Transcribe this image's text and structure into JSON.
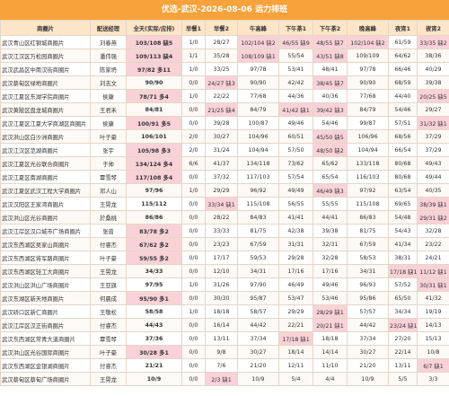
{
  "header": {
    "title": "优选-武汉-2026-08-06 运力排班"
  },
  "table": {
    "columns": [
      "商圈片",
      "配送经理",
      "全天(实际/应排)",
      "早餐1",
      "早餐2",
      "午高峰",
      "下午茶1",
      "下午茶2",
      "晚高峰",
      "夜宵1",
      "夜宵2"
    ],
    "rows": [
      [
        "武汉青山区红钢城商圈片",
        "刘春燕",
        "103/108 缺5",
        "1/0",
        "28/27",
        "102/104 缺2",
        "46/55 缺9",
        "48/55 缺7",
        "102/104 缺2",
        "61/59",
        "33/35 缺2"
      ],
      [
        "武汉江汉区万松园商圈片",
        "潘伟强",
        "109/113 缺4",
        "1/1",
        "35/28",
        "108/109 缺1",
        "55/54",
        "43/51 缺8",
        "109/109",
        "64/62",
        "38/36"
      ],
      [
        "武汉武昌区中南汉街商圈片",
        "陈家坍",
        "97/82 多11",
        "1/0",
        "33/25",
        "97/78",
        "53/41",
        "48/41",
        "97/78",
        "66/46",
        "40/29"
      ],
      [
        "武汉蔡甸区绿地商圈片",
        "刘志文",
        "90/90",
        "0/0",
        "24/27 缺3",
        "90/90",
        "42/42",
        "38/45 缺7",
        "90/90",
        "68/59",
        "39/38"
      ],
      [
        "武汉江夏区东湖学院商圈片",
        "侯康",
        "78/71 多4",
        "1/0",
        "22/22",
        "77/68",
        "44/36",
        "40/36",
        "77/68",
        "44/40",
        "20/25 缺5"
      ],
      [
        "武汉黄陂区盘龙城商圈片",
        "王君禾",
        "84/81",
        "0/0",
        "21/25 缺4",
        "84/79",
        "41/42 缺1",
        "39/42 缺3",
        "84/79",
        "54/46",
        "29/27"
      ],
      [
        "武汉江夏区江夏大学商湖区商圈片",
        "侯康",
        "100/91 多5",
        "0/0",
        "39/28",
        "100/87",
        "49/46",
        "54/46",
        "99/87",
        "57/51",
        "31/32 缺1"
      ],
      [
        "武汉洪山区白沙洲商圈片",
        "叶子豪",
        "106/101",
        "2/0",
        "30/27",
        "104/96",
        "60/51",
        "45/50 缺5",
        "106/96",
        "68/56",
        "37/29"
      ],
      [
        "武汉江汉区范湖商圈片",
        "张宇",
        "105/98 多3",
        "2/0",
        "31/24",
        "104/94",
        "57/50",
        "48/50 缺2",
        "104/94",
        "66/54",
        "37/29"
      ],
      [
        "武汉江夏区光谷联合商圈片",
        "于帅",
        "134/124 多4",
        "6/6",
        "41/37",
        "134/118",
        "73/62",
        "65/62",
        "133/118",
        "80/68",
        "49/43"
      ],
      [
        "武汉江夏区南湖商圈片",
        "覃雪琴",
        "117/108 多4",
        "0/0",
        "37/32",
        "117/103",
        "57/54",
        "65/54",
        "116/103",
        "80/68",
        "49/44"
      ],
      [
        "武汉江夏区武汉工程大学商圈片",
        "邓人山",
        "97/96",
        "1/0",
        "29/29",
        "96/92",
        "49/49",
        "46/49 缺3",
        "97/92",
        "63/54",
        "40/35"
      ],
      [
        "武汉汉阳区王家湾商圈片",
        "王晃龙",
        "115/112",
        "0/0",
        "33/34 缺1",
        "115/108",
        "56/55",
        "55/55",
        "115/108",
        "69/65",
        "38/39 缺1"
      ],
      [
        "武汉洪山区光谷商圈片",
        "於桑桃",
        "86/86",
        "0/0",
        "28/22",
        "84/83",
        "41/41",
        "44/41",
        "86/83",
        "54/48",
        "29/31 缺2"
      ],
      [
        "武汉江岸区汉口城市广场商圈片",
        "张普",
        "83/78 多2",
        "0/0",
        "33/33",
        "81/75",
        "42/38",
        "39/38",
        "81/75",
        "54/43",
        "32/28"
      ],
      [
        "武汉东西湖区吴家山商圈片",
        "付睿杰",
        "67/62 多2",
        "0/0",
        "23/23",
        "67/59",
        "31/31",
        "32/31",
        "67/59",
        "41/34",
        "23/22"
      ],
      [
        "武汉东西湖区将军路商圈片",
        "叶子豪",
        "59/55 多2",
        "0/0",
        "17/17",
        "59/53",
        "29/28",
        "32/28",
        "58/53",
        "38/31",
        "24/21"
      ],
      [
        "武汉东西湖区轻工大商圈片",
        "王晃龙",
        "34/33",
        "0/0",
        "12/10",
        "34/31",
        "17/16",
        "17/16",
        "34/31",
        "17/18 缺1",
        "11/12 缺1"
      ],
      [
        "武汉洪山区洪山广场商圈片",
        "王亚旗",
        "97/95",
        "1/0",
        "31/26",
        "97/90",
        "46/49",
        "49/46",
        "96/93",
        "57/52",
        "30/31 缺1"
      ],
      [
        "武汉东湖区新天地商圈片",
        "何晨成",
        "95/90 多1",
        "0/0",
        "30/30",
        "95/87",
        "53/47",
        "53/46",
        "95/86",
        "65/50",
        "41/32"
      ],
      [
        "武汉硚口区新仁商圈片",
        "王敬松",
        "58/58",
        "1/0",
        "18/18",
        "58/57",
        "29/29",
        "28/29 缺1",
        "57/57",
        "34/34",
        "19/19"
      ],
      [
        "武汉江岸区汉正街商圈片",
        "付睿杰",
        "44/43",
        "0/0",
        "16/14",
        "44/42",
        "22/21",
        "20/21 缺1",
        "44/42",
        "23/24 缺1",
        "14/13"
      ],
      [
        "武汉东西湖区常青大道商圈片",
        "覃雪琴",
        "37/36",
        "0/0",
        "13/11",
        "37/34",
        "17/18 缺1",
        "18/18",
        "37/34",
        "27/20",
        "15/13"
      ],
      [
        "武汉洪山区光谷国际商圈片",
        "叶子豪",
        "30/28 多1",
        "0/0",
        "9/8",
        "30/27",
        "18/14",
        "14/14",
        "30/27",
        "22/14",
        "10/8"
      ],
      [
        "武汉东西湖区金银湖商圈片",
        "付睿杰",
        "21/21",
        "0/0",
        "7/6",
        "21/20",
        "12/11",
        "11/10",
        "21/20",
        "13/11",
        "6/7 缺1"
      ],
      [
        "武汉蔡甸区蔡甸广场商圈片",
        "王晃龙",
        "10/9",
        "0/0",
        "2/3 缺1",
        "10/9",
        "5/4",
        "4/4",
        "10/9",
        "5/5",
        "3/3"
      ]
    ]
  }
}
